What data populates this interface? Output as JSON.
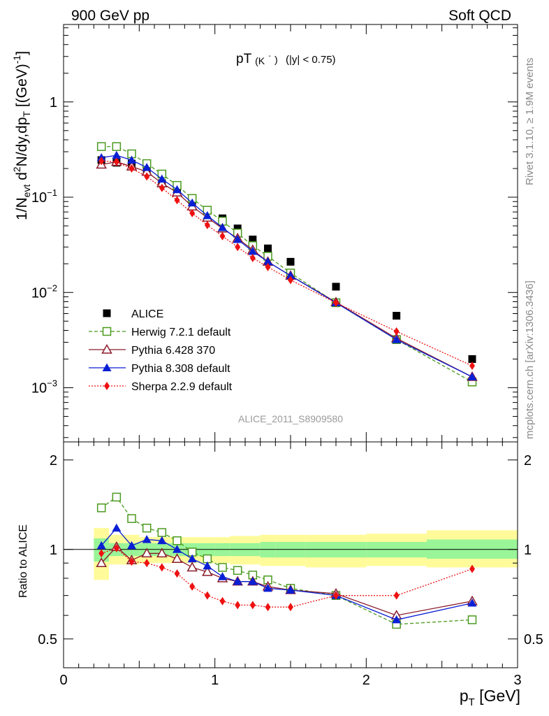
{
  "header": {
    "left": "900 GeV pp",
    "right": "Soft QCD"
  },
  "side_labels": {
    "rivet": "Rivet 3.1.10, ≥ 1.9M events",
    "mcplots": "mcplots.cern.ch [arXiv:1306.3436]"
  },
  "analysis_id": "ALICE_2011_S8909580",
  "title": {
    "main": "pT",
    "sub": "(K",
    "sup": "-",
    "close": ")",
    "cut": "(|y| < 0.75)"
  },
  "y_label": {
    "part1": "1/N",
    "sub1": "evt",
    "part2": " d",
    "sup2": "2",
    "part3": "N/dy,dp",
    "sub3": "T",
    "part4": " [(GeV)",
    "sup4": "-1",
    "part5": "]"
  },
  "ratio_y_label": "Ratio to ALICE",
  "x_label": {
    "main": "p",
    "sub": "T",
    "unit": " [GeV]"
  },
  "top_tick_labels": [
    {
      "mant": "1",
      "exp": ""
    },
    {
      "mant": "10",
      "exp": "−1"
    },
    {
      "mant": "10",
      "exp": "−2"
    },
    {
      "mant": "10",
      "exp": "−3"
    }
  ],
  "ratio_tick_labels": [
    "2",
    "1",
    "0.5"
  ],
  "x_tick_labels": [
    "0",
    "1",
    "2",
    "3"
  ],
  "chart_data": {
    "type": "scatter",
    "x_range": [
      0,
      3
    ],
    "y_range_main": [
      0.00027,
      6.5
    ],
    "y_scale_main": "log",
    "y_range_ratio": [
      0.4,
      2.3
    ],
    "y_scale_ratio": "log",
    "legend_position": "bottom-left",
    "x": [
      0.25,
      0.35,
      0.45,
      0.55,
      0.65,
      0.75,
      0.85,
      0.95,
      1.05,
      1.15,
      1.25,
      1.35,
      1.5,
      1.8,
      2.2,
      2.7
    ],
    "x_bins": [
      [
        0.2,
        0.3
      ],
      [
        0.3,
        0.4
      ],
      [
        0.4,
        0.5
      ],
      [
        0.5,
        0.6
      ],
      [
        0.6,
        0.7
      ],
      [
        0.7,
        0.8
      ],
      [
        0.8,
        0.9
      ],
      [
        0.9,
        1.0
      ],
      [
        1.0,
        1.1
      ],
      [
        1.1,
        1.2
      ],
      [
        1.2,
        1.3
      ],
      [
        1.3,
        1.4
      ],
      [
        1.4,
        1.6
      ],
      [
        1.6,
        2.0
      ],
      [
        2.0,
        2.4
      ],
      [
        2.4,
        3.0
      ]
    ],
    "series": [
      {
        "name": "ALICE",
        "color": "#000000",
        "marker": "square-filled",
        "line": "none",
        "values": [
          0.245,
          0.23,
          0.225,
          0.19,
          0.14,
          0.115,
          0.092,
          0.073,
          0.06,
          0.047,
          0.036,
          0.029,
          0.021,
          0.0115,
          0.0057,
          0.002
        ]
      },
      {
        "name": "Herwig 7.2.1 default",
        "color": "#4a9a1e",
        "marker": "square-open",
        "line": "dashed",
        "values": [
          0.34,
          0.34,
          0.285,
          0.225,
          0.175,
          0.133,
          0.097,
          0.073,
          0.056,
          0.042,
          0.031,
          0.024,
          0.016,
          0.0078,
          0.0032,
          0.00115
        ],
        "ratio": [
          1.38,
          1.5,
          1.27,
          1.18,
          1.14,
          1.07,
          0.98,
          0.93,
          0.87,
          0.85,
          0.82,
          0.79,
          0.74,
          0.7,
          0.56,
          0.58
        ]
      },
      {
        "name": "Pythia 6.428 370",
        "color": "#8b1c2c",
        "marker": "triangle-open",
        "line": "solid",
        "values": [
          0.22,
          0.235,
          0.21,
          0.185,
          0.14,
          0.112,
          0.08,
          0.061,
          0.047,
          0.037,
          0.028,
          0.021,
          0.015,
          0.0079,
          0.0033,
          0.0013
        ],
        "ratio": [
          0.9,
          1.02,
          0.92,
          0.97,
          0.97,
          0.93,
          0.87,
          0.84,
          0.8,
          0.78,
          0.78,
          0.75,
          0.73,
          0.71,
          0.6,
          0.67
        ]
      },
      {
        "name": "Pythia 8.308 default",
        "color": "#0a1fd4",
        "marker": "triangle-filled",
        "line": "solid",
        "values": [
          0.26,
          0.275,
          0.245,
          0.205,
          0.155,
          0.12,
          0.087,
          0.064,
          0.048,
          0.036,
          0.027,
          0.021,
          0.015,
          0.0078,
          0.0032,
          0.0013
        ],
        "ratio": [
          1.03,
          1.18,
          1.03,
          1.08,
          1.07,
          1.0,
          0.93,
          0.88,
          0.81,
          0.78,
          0.78,
          0.74,
          0.73,
          0.7,
          0.58,
          0.66
        ]
      },
      {
        "name": "Sherpa 2.2.9 default",
        "color": "#ee1111",
        "marker": "diamond-filled",
        "line": "dotted",
        "values": [
          0.24,
          0.235,
          0.2,
          0.165,
          0.125,
          0.093,
          0.068,
          0.051,
          0.039,
          0.03,
          0.023,
          0.0185,
          0.0135,
          0.0078,
          0.0039,
          0.0017
        ],
        "ratio": [
          0.97,
          1.01,
          0.91,
          0.9,
          0.87,
          0.83,
          0.75,
          0.7,
          0.67,
          0.65,
          0.65,
          0.64,
          0.64,
          0.7,
          0.7,
          0.86
        ]
      }
    ],
    "ratio_bands": {
      "inner_color": "#99f598",
      "outer_color": "#fffb9a",
      "inner": [
        [
          0.91,
          1.09
        ],
        [
          0.95,
          1.05
        ],
        [
          0.95,
          1.05
        ],
        [
          0.95,
          1.05
        ],
        [
          0.95,
          1.05
        ],
        [
          0.95,
          1.05
        ],
        [
          0.95,
          1.05
        ],
        [
          0.95,
          1.05
        ],
        [
          0.95,
          1.05
        ],
        [
          0.95,
          1.05
        ],
        [
          0.95,
          1.05
        ],
        [
          0.94,
          1.06
        ],
        [
          0.94,
          1.06
        ],
        [
          0.94,
          1.06
        ],
        [
          0.94,
          1.06
        ],
        [
          0.93,
          1.08
        ]
      ],
      "outer": [
        [
          0.79,
          1.18
        ],
        [
          0.89,
          1.12
        ],
        [
          0.89,
          1.12
        ],
        [
          0.9,
          1.1
        ],
        [
          0.9,
          1.1
        ],
        [
          0.9,
          1.1
        ],
        [
          0.9,
          1.1
        ],
        [
          0.9,
          1.1
        ],
        [
          0.9,
          1.1
        ],
        [
          0.89,
          1.11
        ],
        [
          0.89,
          1.11
        ],
        [
          0.88,
          1.12
        ],
        [
          0.88,
          1.12
        ],
        [
          0.87,
          1.12
        ],
        [
          0.88,
          1.13
        ],
        [
          0.87,
          1.16
        ]
      ]
    }
  }
}
